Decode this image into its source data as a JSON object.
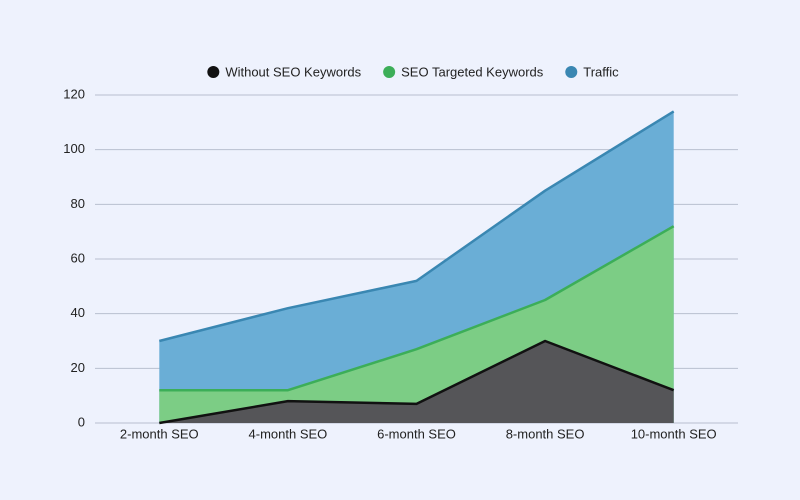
{
  "chart_data": {
    "type": "area",
    "categories": [
      "2-month SEO",
      "4-month SEO",
      "6-month SEO",
      "8-month SEO",
      "10-month SEO"
    ],
    "series": [
      {
        "name": "Without SEO Keywords",
        "color": "#111111",
        "fill": "#555558",
        "values": [
          0,
          8,
          7,
          30,
          12
        ]
      },
      {
        "name": "SEO Targeted Keywords",
        "color": "#3cae58",
        "fill": "#7ccd85",
        "values": [
          12,
          12,
          27,
          45,
          72
        ]
      },
      {
        "name": "Traffic",
        "color": "#3a87b2",
        "fill": "#6aaed6",
        "values": [
          30,
          42,
          52,
          85,
          114
        ]
      }
    ],
    "ylim": [
      0,
      120
    ],
    "yticks": [
      0,
      20,
      40,
      60,
      80,
      100,
      120
    ],
    "grid": true,
    "legend": "top"
  }
}
